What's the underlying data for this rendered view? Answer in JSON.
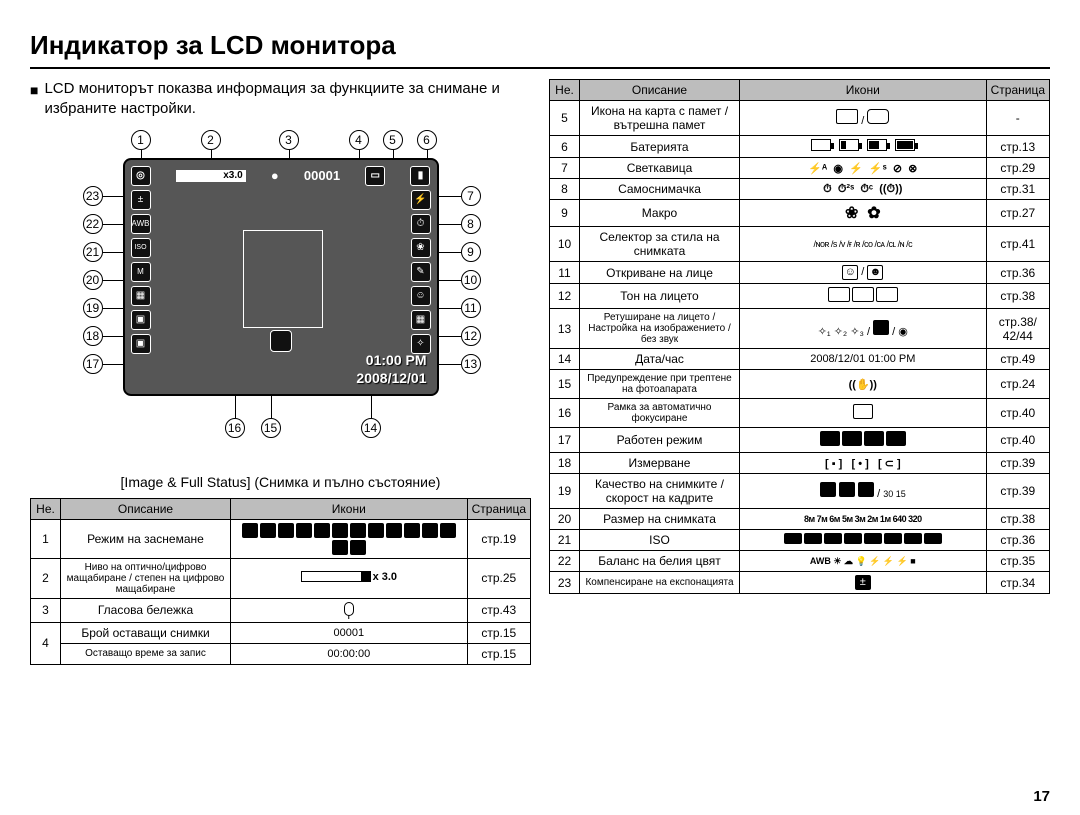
{
  "title": "Индикатор за LCD монитора",
  "intro": "LCD мониторът показва информация за функциите за снимане и избраните настройки.",
  "diagram": {
    "zoom_text": "x3.0",
    "shots_remaining": "00001",
    "time": "01:00 PM",
    "date": "2008/12/01",
    "caption": "[Image & Full Status] (Снимка и пълно състояние)",
    "callouts_top": [
      "1",
      "2",
      "3",
      "4",
      "5",
      "6"
    ],
    "callouts_right": [
      "7",
      "8",
      "9",
      "10",
      "11",
      "12",
      "13"
    ],
    "callouts_bottom": [
      "16",
      "15",
      "14"
    ],
    "callouts_left": [
      "23",
      "22",
      "21",
      "20",
      "19",
      "18",
      "17"
    ]
  },
  "table_headers": {
    "num": "Не.",
    "desc": "Описание",
    "icons": "Икони",
    "page": "Страница"
  },
  "table_left": [
    {
      "n": "1",
      "desc": "Режим на заснемане",
      "icons": "mode-grid",
      "page": "стр.19"
    },
    {
      "n": "2",
      "desc": "Ниво на оптично/цифрово мащабиране / степен на цифрово мащабиране",
      "icons": "zoom-bar",
      "icons_text": "x 3.0",
      "page": "стр.25",
      "small": true
    },
    {
      "n": "3",
      "desc": "Гласова бележка",
      "icons": "mic",
      "page": "стр.43"
    },
    {
      "n": "4a",
      "n_text": "4",
      "desc": "Брой оставащи снимки",
      "icons_text": "00001",
      "page": "стр.15",
      "rowspan": 2
    },
    {
      "n": "4b",
      "desc": "Оставащо време за запис",
      "icons_text": "00:00:00",
      "page": "стр.15",
      "small": true
    }
  ],
  "table_right": [
    {
      "n": "5",
      "desc": "Икона на карта с памет / вътрешна памет",
      "icons": "card-mem",
      "page": "-"
    },
    {
      "n": "6",
      "desc": "Батерията",
      "icons": "battery-levels",
      "page": "стр.13"
    },
    {
      "n": "7",
      "desc": "Светкавица",
      "icons": "flash-modes",
      "page": "стр.29"
    },
    {
      "n": "8",
      "desc": "Самоснимачка",
      "icons": "selftimer",
      "page": "стр.31"
    },
    {
      "n": "9",
      "desc": "Макро",
      "icons": "macro",
      "page": "стр.27"
    },
    {
      "n": "10",
      "desc": "Селектор за стила на снимката",
      "icons": "style-selector",
      "page": "стр.41"
    },
    {
      "n": "11",
      "desc": "Откриване на лице",
      "icons": "face-detect",
      "page": "стр.36"
    },
    {
      "n": "12",
      "desc": "Тон на лицето",
      "icons": "face-tone",
      "page": "стр.38"
    },
    {
      "n": "13",
      "desc": "Ретуширане на лицето / Настройка на изображението / без звук",
      "icons": "retouch",
      "page": "стр.38/ 42/44",
      "small": true
    },
    {
      "n": "14",
      "desc": "Дата/час",
      "icons_text": "2008/12/01  01:00 PM",
      "page": "стр.49"
    },
    {
      "n": "15",
      "desc": "Предупреждение при трептене на фотоапарата",
      "icons": "shake",
      "page": "стр.24",
      "small": true
    },
    {
      "n": "16",
      "desc": "Рамка за автоматично фокусиране",
      "icons": "af-frame",
      "page": "стр.40",
      "small": true
    },
    {
      "n": "17",
      "desc": "Работен режим",
      "icons": "drive-mode",
      "page": "стр.40"
    },
    {
      "n": "18",
      "desc": "Измерване",
      "icons": "metering",
      "page": "стр.39"
    },
    {
      "n": "19",
      "desc": "Качество на снимките / скорост на кадрите",
      "icons": "quality",
      "page": "стр.39"
    },
    {
      "n": "20",
      "desc": "Размер на снимката",
      "icons": "image-size",
      "page": "стр.38"
    },
    {
      "n": "21",
      "desc": "ISO",
      "icons": "iso",
      "page": "стр.36"
    },
    {
      "n": "22",
      "desc": "Баланс на белия цвят",
      "icons": "wb",
      "page": "стр.35"
    },
    {
      "n": "23",
      "desc": "Компенсиране на експонацията",
      "icons": "ev",
      "page": "стр.34",
      "small": true
    }
  ],
  "page_number": "17",
  "colors": {
    "header_bg": "#bdbdbd",
    "lcd_bg": "#565656",
    "border": "#000000",
    "bg": "#ffffff"
  }
}
